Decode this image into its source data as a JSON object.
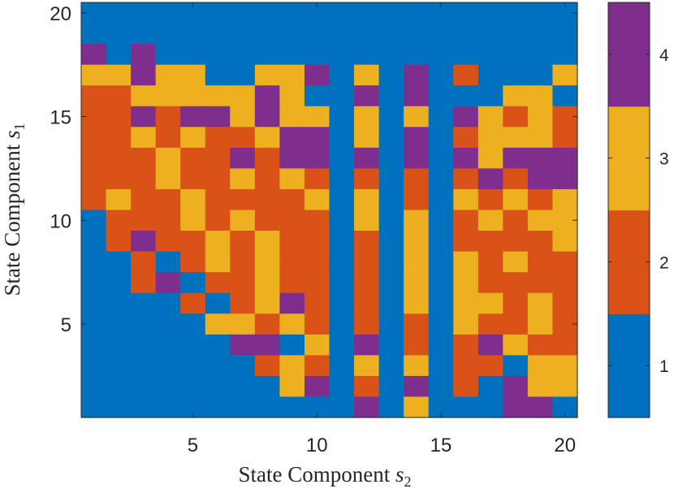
{
  "chart_data": {
    "type": "heatmap",
    "xlabel": "State Component s₂",
    "ylabel": "State Component s₁",
    "xlabel_text": "State Component",
    "xlabel_var": "s",
    "xlabel_sub": "2",
    "ylabel_text": "State Component",
    "ylabel_var": "s",
    "ylabel_sub": "1",
    "xlim": [
      1,
      20
    ],
    "ylim": [
      1,
      20
    ],
    "x_ticks": [
      5,
      10,
      15,
      20
    ],
    "y_ticks": [
      5,
      10,
      15,
      20
    ],
    "x_tick_labels": [
      "5",
      "10",
      "15",
      "20"
    ],
    "y_tick_labels": [
      "5",
      "10",
      "15",
      "20"
    ],
    "colorbar": {
      "ticks": [
        1,
        2,
        3,
        4
      ],
      "tick_labels": [
        "1",
        "2",
        "3",
        "4"
      ],
      "range": [
        0.5,
        4.5
      ],
      "colors": [
        "#0072BD",
        "#D95319",
        "#EDB120",
        "#7E2F8E"
      ]
    },
    "note_rows": "rows listed from s1 = 20 (top) down to s1 = 1 (bottom); each row lists s2 = 1..20",
    "z": [
      [
        1,
        1,
        1,
        1,
        1,
        1,
        1,
        1,
        1,
        1,
        1,
        1,
        1,
        1,
        1,
        1,
        1,
        1,
        1,
        1
      ],
      [
        1,
        1,
        1,
        1,
        1,
        1,
        1,
        1,
        1,
        1,
        1,
        1,
        1,
        1,
        1,
        1,
        1,
        1,
        1,
        1
      ],
      [
        4,
        1,
        4,
        1,
        1,
        1,
        1,
        1,
        1,
        1,
        1,
        1,
        1,
        1,
        1,
        1,
        1,
        1,
        1,
        1
      ],
      [
        3,
        3,
        4,
        3,
        3,
        1,
        1,
        3,
        3,
        4,
        1,
        3,
        1,
        4,
        1,
        2,
        1,
        1,
        1,
        3
      ],
      [
        2,
        2,
        3,
        3,
        3,
        3,
        3,
        4,
        3,
        1,
        1,
        4,
        1,
        4,
        1,
        1,
        1,
        3,
        3,
        1
      ],
      [
        2,
        2,
        4,
        2,
        4,
        4,
        3,
        4,
        3,
        3,
        1,
        3,
        1,
        3,
        1,
        4,
        3,
        2,
        3,
        2
      ],
      [
        2,
        2,
        3,
        2,
        3,
        2,
        2,
        3,
        4,
        4,
        1,
        3,
        1,
        4,
        1,
        2,
        3,
        3,
        3,
        2
      ],
      [
        2,
        2,
        2,
        3,
        2,
        2,
        4,
        2,
        4,
        4,
        1,
        4,
        1,
        4,
        1,
        4,
        3,
        4,
        4,
        4
      ],
      [
        2,
        2,
        2,
        3,
        2,
        2,
        3,
        2,
        3,
        2,
        1,
        2,
        1,
        2,
        1,
        2,
        4,
        2,
        4,
        4
      ],
      [
        2,
        3,
        2,
        2,
        3,
        2,
        2,
        2,
        2,
        3,
        1,
        3,
        1,
        2,
        1,
        3,
        2,
        3,
        2,
        3
      ],
      [
        1,
        2,
        2,
        2,
        3,
        2,
        3,
        2,
        2,
        2,
        1,
        3,
        1,
        3,
        1,
        2,
        3,
        2,
        3,
        3
      ],
      [
        1,
        2,
        4,
        2,
        2,
        3,
        2,
        3,
        2,
        2,
        1,
        2,
        1,
        3,
        1,
        2,
        2,
        2,
        2,
        3
      ],
      [
        1,
        1,
        2,
        1,
        2,
        3,
        2,
        3,
        2,
        2,
        1,
        2,
        1,
        3,
        1,
        3,
        2,
        3,
        2,
        2
      ],
      [
        1,
        1,
        2,
        4,
        1,
        2,
        2,
        3,
        2,
        2,
        1,
        2,
        1,
        3,
        1,
        3,
        2,
        2,
        2,
        2
      ],
      [
        1,
        1,
        1,
        1,
        2,
        1,
        2,
        3,
        4,
        2,
        1,
        2,
        1,
        3,
        1,
        3,
        3,
        2,
        3,
        2
      ],
      [
        1,
        1,
        1,
        1,
        1,
        3,
        3,
        2,
        3,
        2,
        1,
        2,
        1,
        2,
        1,
        3,
        2,
        2,
        3,
        2
      ],
      [
        1,
        1,
        1,
        1,
        1,
        1,
        4,
        4,
        1,
        3,
        1,
        4,
        1,
        2,
        1,
        2,
        4,
        3,
        2,
        2
      ],
      [
        1,
        1,
        1,
        1,
        1,
        1,
        1,
        2,
        3,
        2,
        1,
        3,
        1,
        3,
        1,
        2,
        2,
        1,
        3,
        3
      ],
      [
        1,
        1,
        1,
        1,
        1,
        1,
        1,
        1,
        3,
        4,
        1,
        2,
        1,
        4,
        1,
        2,
        1,
        4,
        3,
        3
      ],
      [
        1,
        1,
        1,
        1,
        1,
        1,
        1,
        1,
        1,
        1,
        1,
        4,
        1,
        3,
        1,
        1,
        1,
        4,
        4,
        1
      ]
    ]
  }
}
